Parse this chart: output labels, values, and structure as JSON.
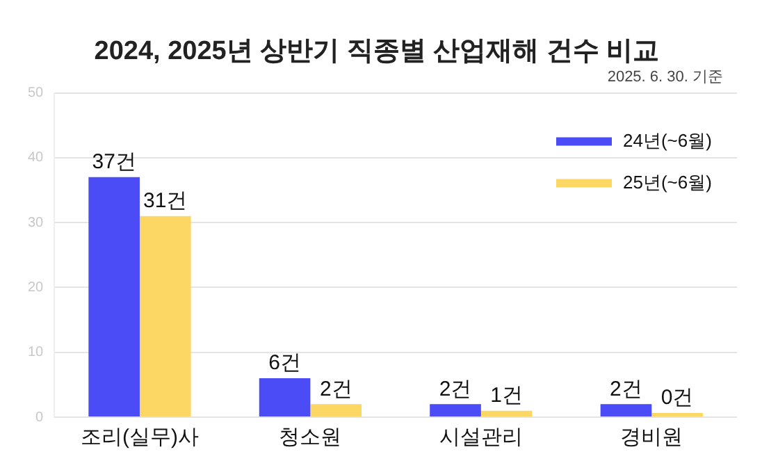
{
  "chart_data": {
    "type": "bar",
    "title": "2024, 2025년 상반기 직종별 산업재해 건수 비교",
    "annotations": [
      "2025. 6. 30. 기준"
    ],
    "categories": [
      "조리(실무)사",
      "청소원",
      "시설관리",
      "경비원"
    ],
    "series": [
      {
        "name": "24년(~6월)",
        "color": "#4b4cf5",
        "values": [
          37,
          6,
          2,
          2
        ],
        "value_labels": [
          "37건",
          "6건",
          "2건",
          "2건"
        ]
      },
      {
        "name": "25년(~6월)",
        "color": "#fdd764",
        "values": [
          31,
          2,
          1,
          0
        ],
        "value_labels": [
          "31건",
          "2건",
          "1건",
          "0건"
        ]
      }
    ],
    "ylim": [
      0,
      50
    ],
    "yticks": [
      0,
      10,
      20,
      30,
      40,
      50
    ],
    "grid": "y",
    "legend": "top right"
  }
}
